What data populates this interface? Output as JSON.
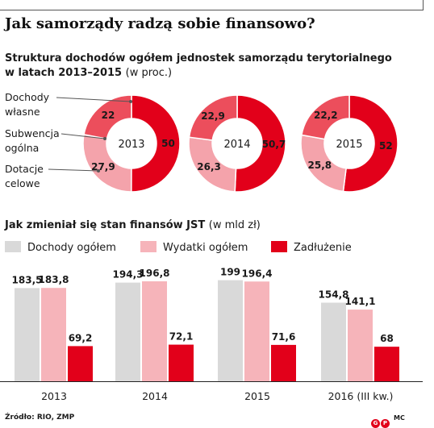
{
  "title": "Jak samorządy radzą sobie finansowo?",
  "pie_section": {
    "title_bold": "Struktura dochodów ogółem jednostek samorządu terytorialnego",
    "title_line2_bold": "w latach 2013–2015",
    "title_unit": "(w proc.)"
  },
  "bar_section": {
    "title_bold": "Jak zmieniał się stan finansów JST",
    "title_unit": "(w mld zł)"
  },
  "colors": {
    "own_income": "#e2001a",
    "subsidy": "#f4a3ab",
    "grants": "#ec4e5c",
    "income_total": "#d9d9d9",
    "expenses_total": "#f6b4ba",
    "debt": "#e2001a"
  },
  "chart_data": [
    {
      "type": "pie",
      "title": "Struktura dochodów ogółem jednostek samorządu terytorialnego w latach 2013–2015 (w proc.)",
      "legend": [
        "Dochody własne",
        "Subwencja ogólna",
        "Dotacje celowe"
      ],
      "legend_lines": [
        [
          "Dochody",
          "własne"
        ],
        [
          "Subwencja",
          "ogólna"
        ],
        [
          "Dotacje",
          "celowe"
        ]
      ],
      "pies": [
        {
          "label": "2013",
          "values": [
            50,
            27.9,
            22
          ],
          "value_labels": [
            "50",
            "27,9",
            "22"
          ]
        },
        {
          "label": "2014",
          "values": [
            50.7,
            26.3,
            22.9
          ],
          "value_labels": [
            "50,7",
            "26,3",
            "22,9"
          ]
        },
        {
          "label": "2015",
          "values": [
            52,
            25.8,
            22.2
          ],
          "value_labels": [
            "52",
            "25,8",
            "22,2"
          ]
        }
      ]
    },
    {
      "type": "bar",
      "title": "Jak zmieniał się stan finansów JST (w mld zł)",
      "categories": [
        "2013",
        "2014",
        "2015",
        "2016 (III kw.)"
      ],
      "series": [
        {
          "name": "Dochody ogółem",
          "values": [
            183.5,
            194.3,
            199,
            154.8
          ],
          "value_labels": [
            "183,5",
            "194,3",
            "199",
            "154,8"
          ]
        },
        {
          "name": "Wydatki ogółem",
          "values": [
            183.8,
            196.8,
            196.4,
            141.1
          ],
          "value_labels": [
            "183,8",
            "196,8",
            "196,4",
            "141,1"
          ]
        },
        {
          "name": "Zadłużenie",
          "values": [
            69.2,
            72.1,
            71.6,
            68
          ],
          "value_labels": [
            "69,2",
            "72,1",
            "71,6",
            "68"
          ]
        }
      ],
      "ylim": [
        0,
        200
      ]
    }
  ],
  "source": "Źródło: RIO, ZMP",
  "credit": "MC",
  "logo_letters": [
    "G",
    "P"
  ]
}
